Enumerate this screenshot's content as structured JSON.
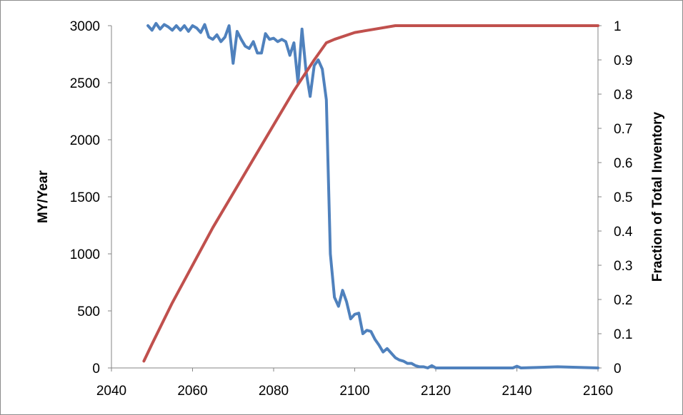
{
  "chart_data": {
    "type": "line",
    "title": "",
    "xlabel": "",
    "ylabel": "MY/Year",
    "y2label": "Fraction of Total Inventory",
    "xlim": [
      2040,
      2160
    ],
    "ylim": [
      0,
      3000
    ],
    "y2lim": [
      0,
      1
    ],
    "x_ticks": [
      "2040",
      "2060",
      "2080",
      "2100",
      "2120",
      "2140",
      "2160"
    ],
    "y_ticks": [
      "0",
      "500",
      "1000",
      "1500",
      "2000",
      "2500",
      "3000"
    ],
    "y2_ticks": [
      "0",
      "0.1",
      "0.2",
      "0.3",
      "0.4",
      "0.5",
      "0.6",
      "0.7",
      "0.8",
      "0.9",
      "1"
    ],
    "grid": false,
    "legend": "none",
    "series": [
      {
        "axis": "left",
        "color": "#4f81bd",
        "x": [
          2049,
          2050,
          2051,
          2052,
          2053,
          2054,
          2055,
          2056,
          2057,
          2058,
          2059,
          2060,
          2061,
          2062,
          2063,
          2064,
          2065,
          2066,
          2067,
          2068,
          2069,
          2070,
          2071,
          2072,
          2073,
          2074,
          2075,
          2076,
          2077,
          2078,
          2079,
          2080,
          2081,
          2082,
          2083,
          2084,
          2085,
          2086,
          2087,
          2088,
          2089,
          2090,
          2091,
          2092,
          2093,
          2094,
          2095,
          2096,
          2097,
          2098,
          2099,
          2100,
          2101,
          2102,
          2103,
          2104,
          2105,
          2106,
          2107,
          2108,
          2109,
          2110,
          2111,
          2112,
          2113,
          2114,
          2115,
          2116,
          2117,
          2118,
          2119,
          2120,
          2130,
          2139,
          2140,
          2141,
          2150,
          2160
        ],
        "y": [
          3000,
          2960,
          3020,
          2970,
          3010,
          2990,
          2960,
          3000,
          2960,
          3000,
          2950,
          3000,
          2980,
          2940,
          3010,
          2900,
          2880,
          2920,
          2860,
          2900,
          3000,
          2670,
          2950,
          2880,
          2820,
          2800,
          2860,
          2760,
          2760,
          2930,
          2880,
          2890,
          2860,
          2880,
          2860,
          2740,
          2850,
          2500,
          2970,
          2600,
          2380,
          2650,
          2700,
          2620,
          2350,
          1000,
          620,
          540,
          680,
          580,
          430,
          470,
          480,
          300,
          330,
          320,
          250,
          200,
          140,
          170,
          130,
          90,
          70,
          60,
          40,
          40,
          20,
          10,
          10,
          0,
          20,
          0,
          0,
          0,
          15,
          0,
          10,
          0
        ]
      },
      {
        "axis": "right",
        "color": "#c0504d",
        "x": [
          2048,
          2050,
          2055,
          2060,
          2065,
          2070,
          2075,
          2080,
          2085,
          2090,
          2093,
          2095,
          2100,
          2105,
          2110,
          2115,
          2120,
          2160
        ],
        "y": [
          0.02,
          0.07,
          0.19,
          0.3,
          0.41,
          0.51,
          0.61,
          0.71,
          0.81,
          0.9,
          0.95,
          0.96,
          0.98,
          0.99,
          1.0,
          1.0,
          1.0,
          1.0
        ]
      }
    ]
  }
}
